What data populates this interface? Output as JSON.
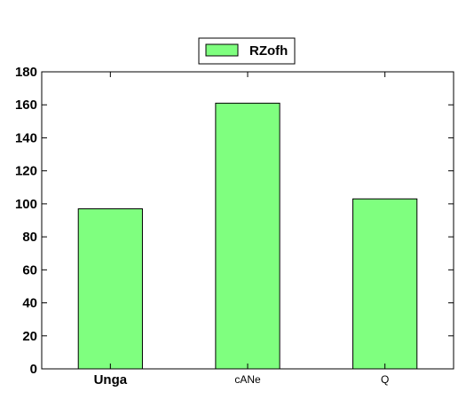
{
  "chart_data": {
    "type": "bar",
    "categories": [
      "Unga",
      "cANe",
      "Q"
    ],
    "series": [
      {
        "name": "RZofh",
        "values": [
          97,
          161,
          103
        ],
        "color": "#7fff7f"
      }
    ],
    "bold_categories": [
      "Unga"
    ],
    "ylim": [
      0,
      180
    ],
    "yticks": [
      "0",
      "20",
      "40",
      "60",
      "80",
      "100",
      "120",
      "140",
      "160",
      "180"
    ],
    "grid": false,
    "legend_position": "top-center"
  }
}
